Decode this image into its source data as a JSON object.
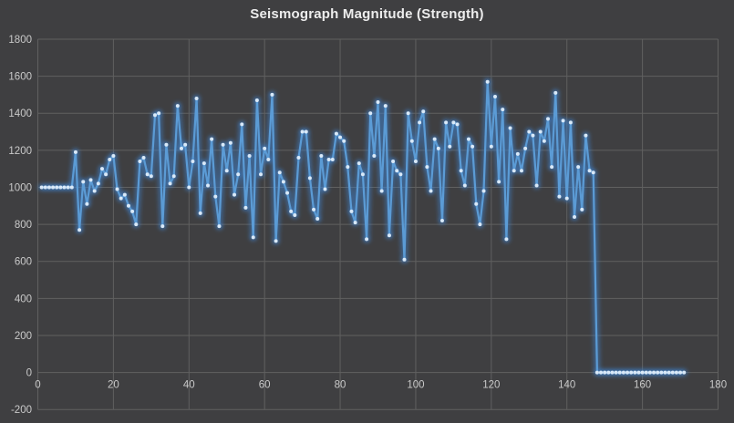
{
  "title": "Seismograph Magnitude (Strength)",
  "style": {
    "background": "#3f3f41",
    "gridline": "#606060",
    "axis_text": "#c9c9c9",
    "title_text": "#ededed",
    "line": "#5b9bd5",
    "line_glow": "#3f80c8",
    "marker_fill": "#d9e9f8"
  },
  "chart_data": {
    "type": "line",
    "title": "Seismograph Magnitude (Strength)",
    "xlabel": "",
    "ylabel": "",
    "grid": true,
    "legend": "none",
    "x_axis": {
      "min": 0,
      "max": 180,
      "ticks": [
        0,
        20,
        40,
        60,
        80,
        100,
        120,
        140,
        160,
        180
      ]
    },
    "y_axis": {
      "min": -200,
      "max": 1800,
      "ticks": [
        -200,
        0,
        200,
        400,
        600,
        800,
        1000,
        1200,
        1400,
        1600,
        1800
      ]
    },
    "series": [
      {
        "name": "Seismograph Magnitude",
        "marker": "circle",
        "x_start": 1,
        "x_step": 1,
        "values": [
          1000,
          1000,
          1000,
          1000,
          1000,
          1000,
          1000,
          1000,
          1000,
          1190,
          770,
          1030,
          910,
          1040,
          980,
          1020,
          1100,
          1070,
          1150,
          1170,
          990,
          940,
          960,
          900,
          870,
          800,
          1140,
          1160,
          1070,
          1060,
          1390,
          1400,
          790,
          1230,
          1020,
          1060,
          1440,
          1210,
          1230,
          1000,
          1140,
          1480,
          860,
          1130,
          1010,
          1260,
          950,
          790,
          1230,
          1090,
          1240,
          960,
          1070,
          1340,
          890,
          1170,
          730,
          1470,
          1070,
          1210,
          1150,
          1500,
          710,
          1080,
          1030,
          970,
          870,
          850,
          1160,
          1300,
          1300,
          1050,
          880,
          830,
          1170,
          990,
          1150,
          1150,
          1290,
          1270,
          1250,
          1110,
          870,
          810,
          1130,
          1070,
          720,
          1400,
          1170,
          1460,
          980,
          1440,
          740,
          1140,
          1090,
          1070,
          610,
          1400,
          1250,
          1140,
          1350,
          1410,
          1110,
          980,
          1260,
          1210,
          820,
          1350,
          1220,
          1350,
          1340,
          1090,
          1010,
          1260,
          1220,
          910,
          800,
          980,
          1570,
          1220,
          1490,
          1030,
          1420,
          720,
          1320,
          1090,
          1180,
          1090,
          1210,
          1300,
          1280,
          1010,
          1300,
          1250,
          1370,
          1110,
          1510,
          950,
          1360,
          940,
          1350,
          840,
          1110,
          880,
          1280,
          1090,
          1080,
          0,
          0,
          0,
          0,
          0,
          0,
          0,
          0,
          0,
          0,
          0,
          0,
          0,
          0,
          0,
          0,
          0,
          0,
          0,
          0,
          0,
          0,
          0,
          0
        ]
      }
    ]
  }
}
